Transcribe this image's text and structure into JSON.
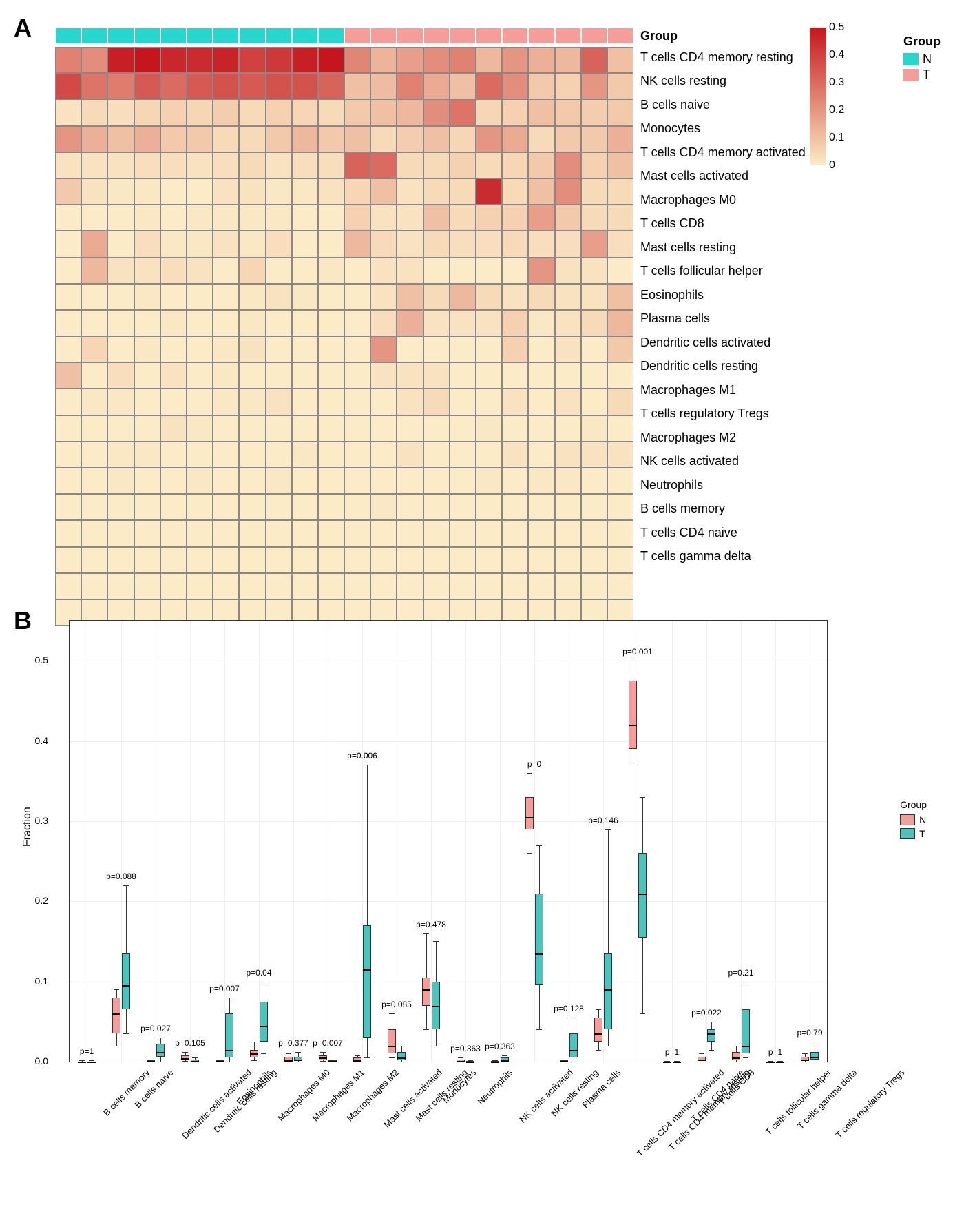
{
  "colors": {
    "group_N": "#27d6cc",
    "group_T": "#f59d99",
    "heatmap_low": "#fbebc6",
    "heatmap_high": "#c5161d",
    "grid_border": "#888888",
    "box_N": "#f59d99",
    "box_T": "#4cc4bd",
    "plot_border": "#333333",
    "grid_line": "#eeeeee"
  },
  "panelA": {
    "label": "A",
    "n_samples": 22,
    "n_N": 11,
    "n_T": 11,
    "group_label": "Group",
    "row_labels": [
      "T cells CD4 memory resting",
      "NK cells resting",
      "B cells naive",
      "Monocytes",
      "T cells CD4 memory activated",
      "Mast cells activated",
      "Macrophages M0",
      "T cells CD8",
      "Mast cells resting",
      "T cells follicular helper",
      "Eosinophils",
      "Plasma cells",
      "Dendritic cells activated",
      "Dendritic cells resting",
      "Macrophages M1",
      "T cells regulatory  Tregs",
      "Macrophages M2",
      "NK cells activated",
      "Neutrophils",
      "B cells memory",
      "T cells CD4 naive",
      "T cells gamma delta"
    ],
    "heatmap_values": [
      [
        0.25,
        0.22,
        0.48,
        0.5,
        0.46,
        0.45,
        0.47,
        0.4,
        0.42,
        0.48,
        0.5,
        0.24,
        0.13,
        0.18,
        0.22,
        0.25,
        0.12,
        0.2,
        0.14,
        0.12,
        0.32,
        0.1
      ],
      [
        0.38,
        0.28,
        0.26,
        0.34,
        0.3,
        0.34,
        0.36,
        0.34,
        0.36,
        0.36,
        0.32,
        0.1,
        0.11,
        0.25,
        0.15,
        0.1,
        0.3,
        0.22,
        0.08,
        0.06,
        0.2,
        0.08
      ],
      [
        0.02,
        0.04,
        0.03,
        0.05,
        0.06,
        0.05,
        0.07,
        0.04,
        0.06,
        0.05,
        0.04,
        0.08,
        0.1,
        0.12,
        0.22,
        0.28,
        0.05,
        0.06,
        0.1,
        0.08,
        0.07,
        0.08
      ],
      [
        0.2,
        0.14,
        0.1,
        0.14,
        0.08,
        0.08,
        0.04,
        0.04,
        0.08,
        0.12,
        0.08,
        0.1,
        0.04,
        0.07,
        0.1,
        0.05,
        0.2,
        0.15,
        0.04,
        0.08,
        0.08,
        0.14
      ],
      [
        0.02,
        0.02,
        0.02,
        0.03,
        0.03,
        0.02,
        0.03,
        0.04,
        0.02,
        0.03,
        0.03,
        0.32,
        0.3,
        0.04,
        0.04,
        0.06,
        0.04,
        0.05,
        0.08,
        0.22,
        0.06,
        0.1
      ],
      [
        0.08,
        0.02,
        0.01,
        0.01,
        0.0,
        0.0,
        0.02,
        0.02,
        0.01,
        0.01,
        0.02,
        0.05,
        0.1,
        0.02,
        0.04,
        0.04,
        0.45,
        0.04,
        0.1,
        0.22,
        0.04,
        0.04
      ],
      [
        0.0,
        0.0,
        0.0,
        0.01,
        0.0,
        0.01,
        0.01,
        0.01,
        0.01,
        0.0,
        0.0,
        0.06,
        0.02,
        0.02,
        0.1,
        0.04,
        0.06,
        0.06,
        0.18,
        0.08,
        0.04,
        0.04
      ],
      [
        0.0,
        0.15,
        0.0,
        0.03,
        0.01,
        0.01,
        0.02,
        0.01,
        0.03,
        0.0,
        0.0,
        0.12,
        0.04,
        0.02,
        0.04,
        0.03,
        0.03,
        0.04,
        0.03,
        0.03,
        0.18,
        0.03
      ],
      [
        0.0,
        0.12,
        0.02,
        0.02,
        0.03,
        0.02,
        0.0,
        0.05,
        0.0,
        0.0,
        0.01,
        0.0,
        0.02,
        0.02,
        0.0,
        0.0,
        0.0,
        0.0,
        0.2,
        0.02,
        0.02,
        0.0
      ],
      [
        0.0,
        0.0,
        0.0,
        0.01,
        0.0,
        0.0,
        0.0,
        0.01,
        0.02,
        0.01,
        0.0,
        0.0,
        0.02,
        0.1,
        0.04,
        0.12,
        0.04,
        0.02,
        0.04,
        0.02,
        0.02,
        0.1
      ],
      [
        0.0,
        0.0,
        0.0,
        0.0,
        0.01,
        0.0,
        0.0,
        0.01,
        0.0,
        0.0,
        0.0,
        0.0,
        0.03,
        0.14,
        0.02,
        0.02,
        0.02,
        0.06,
        0.01,
        0.02,
        0.04,
        0.12
      ],
      [
        0.0,
        0.05,
        0.0,
        0.01,
        0.0,
        0.0,
        0.01,
        0.02,
        0.0,
        0.0,
        0.0,
        0.0,
        0.2,
        0.0,
        0.0,
        0.0,
        0.0,
        0.06,
        0.0,
        0.02,
        0.0,
        0.08
      ],
      [
        0.1,
        0.0,
        0.03,
        0.0,
        0.02,
        0.0,
        0.01,
        0.0,
        0.0,
        0.0,
        0.0,
        0.0,
        0.02,
        0.02,
        0.02,
        0.0,
        0.0,
        0.0,
        0.0,
        0.0,
        0.0,
        0.0
      ],
      [
        0.0,
        0.01,
        0.01,
        0.0,
        0.0,
        0.0,
        0.01,
        0.01,
        0.02,
        0.0,
        0.0,
        0.0,
        0.0,
        0.02,
        0.04,
        0.0,
        0.0,
        0.02,
        0.0,
        0.02,
        0.0,
        0.04
      ],
      [
        0.0,
        0.0,
        0.0,
        0.0,
        0.02,
        0.01,
        0.0,
        0.0,
        0.0,
        0.0,
        0.0,
        0.0,
        0.0,
        0.0,
        0.0,
        0.0,
        0.01,
        0.0,
        0.0,
        0.0,
        0.01,
        0.0
      ],
      [
        0.0,
        0.0,
        0.01,
        0.01,
        0.0,
        0.0,
        0.0,
        0.0,
        0.0,
        0.01,
        0.0,
        0.0,
        0.0,
        0.02,
        0.0,
        0.0,
        0.0,
        0.02,
        0.0,
        0.02,
        0.02,
        0.02
      ],
      [
        0.0,
        0.0,
        0.01,
        0.0,
        0.0,
        0.01,
        0.0,
        0.0,
        0.01,
        0.0,
        0.0,
        0.0,
        0.0,
        0.0,
        0.0,
        0.0,
        0.01,
        0.0,
        0.01,
        0.01,
        0.0,
        0.0
      ],
      [
        0.0,
        0.0,
        0.0,
        0.0,
        0.0,
        0.0,
        0.0,
        0.0,
        0.0,
        0.0,
        0.0,
        0.0,
        0.01,
        0.0,
        0.0,
        0.0,
        0.0,
        0.0,
        0.0,
        0.0,
        0.0,
        0.0
      ],
      [
        0.0,
        0.0,
        0.0,
        0.0,
        0.0,
        0.0,
        0.0,
        0.0,
        0.0,
        0.0,
        0.0,
        0.0,
        0.0,
        0.0,
        0.0,
        0.0,
        0.0,
        0.0,
        0.0,
        0.0,
        0.0,
        0.0
      ],
      [
        0.0,
        0.0,
        0.0,
        0.0,
        0.0,
        0.0,
        0.0,
        0.0,
        0.0,
        0.0,
        0.0,
        0.0,
        0.0,
        0.0,
        0.0,
        0.0,
        0.0,
        0.0,
        0.0,
        0.0,
        0.0,
        0.0
      ],
      [
        0.0,
        0.0,
        0.0,
        0.0,
        0.0,
        0.0,
        0.0,
        0.0,
        0.0,
        0.0,
        0.0,
        0.0,
        0.0,
        0.0,
        0.0,
        0.0,
        0.0,
        0.0,
        0.0,
        0.0,
        0.0,
        0.0
      ],
      [
        0.0,
        0.0,
        0.0,
        0.0,
        0.0,
        0.0,
        0.0,
        0.0,
        0.0,
        0.0,
        0.0,
        0.0,
        0.0,
        0.0,
        0.0,
        0.0,
        0.0,
        0.0,
        0.0,
        0.0,
        0.0,
        0.0
      ]
    ],
    "colorbar": {
      "min": 0,
      "max": 0.5,
      "ticks": [
        0,
        0.1,
        0.2,
        0.3,
        0.4,
        0.5
      ]
    },
    "legend": {
      "title": "Group",
      "items": [
        {
          "label": "N",
          "color": "#27d6cc"
        },
        {
          "label": "T",
          "color": "#f59d99"
        }
      ]
    }
  },
  "panelB": {
    "label": "B",
    "y_axis_title": "Fraction",
    "y_ticks": [
      0.0,
      0.1,
      0.2,
      0.3,
      0.4,
      0.5
    ],
    "y_max": 0.55,
    "legend": {
      "title": "Group",
      "items": [
        {
          "label": "N",
          "color": "#f59d99"
        },
        {
          "label": "T",
          "color": "#4cc4bd"
        }
      ]
    },
    "categories": [
      {
        "name": "B cells memory",
        "p": "p=1",
        "N": {
          "q1": 0,
          "med": 0,
          "q3": 0,
          "lo": 0,
          "hi": 0.002
        },
        "T": {
          "q1": 0,
          "med": 0,
          "q3": 0,
          "lo": 0,
          "hi": 0.002
        }
      },
      {
        "name": "B cells naive",
        "p": "p=0.088",
        "N": {
          "q1": 0.035,
          "med": 0.06,
          "q3": 0.08,
          "lo": 0.02,
          "hi": 0.09
        },
        "T": {
          "q1": 0.065,
          "med": 0.095,
          "q3": 0.135,
          "lo": 0.035,
          "hi": 0.22
        }
      },
      {
        "name": "Dendritic cells activated",
        "p": "p=0.027",
        "N": {
          "q1": 0,
          "med": 0.001,
          "q3": 0.002,
          "lo": 0,
          "hi": 0.003
        },
        "T": {
          "q1": 0.006,
          "med": 0.012,
          "q3": 0.022,
          "lo": 0,
          "hi": 0.03
        }
      },
      {
        "name": "Dendritic cells resting",
        "p": "p=0.105",
        "N": {
          "q1": 0.002,
          "med": 0.004,
          "q3": 0.008,
          "lo": 0.001,
          "hi": 0.012
        },
        "T": {
          "q1": 0,
          "med": 0.001,
          "q3": 0.003,
          "lo": 0,
          "hi": 0.005
        }
      },
      {
        "name": "Eosinophils",
        "p": "p=0.007",
        "N": {
          "q1": 0,
          "med": 0.001,
          "q3": 0.002,
          "lo": 0,
          "hi": 0.003
        },
        "T": {
          "q1": 0.005,
          "med": 0.015,
          "q3": 0.06,
          "lo": 0,
          "hi": 0.08
        }
      },
      {
        "name": "Macrophages M0",
        "p": "p=0.04",
        "N": {
          "q1": 0.005,
          "med": 0.01,
          "q3": 0.015,
          "lo": 0.002,
          "hi": 0.025
        },
        "T": {
          "q1": 0.025,
          "med": 0.045,
          "q3": 0.075,
          "lo": 0.01,
          "hi": 0.1
        }
      },
      {
        "name": "Macrophages M1",
        "p": "p=0.377",
        "N": {
          "q1": 0.001,
          "med": 0.002,
          "q3": 0.006,
          "lo": 0,
          "hi": 0.01
        },
        "T": {
          "q1": 0.001,
          "med": 0.003,
          "q3": 0.006,
          "lo": 0,
          "hi": 0.012
        }
      },
      {
        "name": "Macrophages M2",
        "p": "p=0.007",
        "N": {
          "q1": 0.002,
          "med": 0.005,
          "q3": 0.008,
          "lo": 0.001,
          "hi": 0.012
        },
        "T": {
          "q1": 0,
          "med": 0.001,
          "q3": 0.002,
          "lo": 0,
          "hi": 0.003
        }
      },
      {
        "name": "Mast cells activated",
        "p": "p=0.006",
        "N": {
          "q1": 0,
          "med": 0.002,
          "q3": 0.005,
          "lo": 0,
          "hi": 0.008
        },
        "T": {
          "q1": 0.03,
          "med": 0.115,
          "q3": 0.17,
          "lo": 0.005,
          "hi": 0.37
        }
      },
      {
        "name": "Mast cells resting",
        "p": "p=0.085",
        "N": {
          "q1": 0.01,
          "med": 0.02,
          "q3": 0.04,
          "lo": 0.005,
          "hi": 0.06
        },
        "T": {
          "q1": 0.002,
          "med": 0.005,
          "q3": 0.012,
          "lo": 0,
          "hi": 0.02
        }
      },
      {
        "name": "Monocytes",
        "p": "p=0.478",
        "N": {
          "q1": 0.07,
          "med": 0.09,
          "q3": 0.105,
          "lo": 0.04,
          "hi": 0.16
        },
        "T": {
          "q1": 0.04,
          "med": 0.07,
          "q3": 0.1,
          "lo": 0.02,
          "hi": 0.15
        }
      },
      {
        "name": "Neutrophils",
        "p": "p=0.363",
        "N": {
          "q1": 0,
          "med": 0.001,
          "q3": 0.003,
          "lo": 0,
          "hi": 0.005
        },
        "T": {
          "q1": 0,
          "med": 0,
          "q3": 0.001,
          "lo": 0,
          "hi": 0.002
        }
      },
      {
        "name": "NK cells activated",
        "p": "p=0.363",
        "N": {
          "q1": 0,
          "med": 0,
          "q3": 0.001,
          "lo": 0,
          "hi": 0.002
        },
        "T": {
          "q1": 0.001,
          "med": 0.002,
          "q3": 0.005,
          "lo": 0,
          "hi": 0.008
        }
      },
      {
        "name": "NK cells resting",
        "p": "p=0",
        "N": {
          "q1": 0.29,
          "med": 0.305,
          "q3": 0.33,
          "lo": 0.26,
          "hi": 0.36
        },
        "T": {
          "q1": 0.095,
          "med": 0.135,
          "q3": 0.21,
          "lo": 0.04,
          "hi": 0.27
        }
      },
      {
        "name": "Plasma cells",
        "p": "p=0.128",
        "N": {
          "q1": 0,
          "med": 0.001,
          "q3": 0.002,
          "lo": 0,
          "hi": 0.003
        },
        "T": {
          "q1": 0.005,
          "med": 0.015,
          "q3": 0.035,
          "lo": 0,
          "hi": 0.055
        }
      },
      {
        "name": "T cells CD4 memory activated",
        "p": "p=0.146",
        "N": {
          "q1": 0.025,
          "med": 0.035,
          "q3": 0.055,
          "lo": 0.015,
          "hi": 0.065
        },
        "T": {
          "q1": 0.04,
          "med": 0.09,
          "q3": 0.135,
          "lo": 0.02,
          "hi": 0.29
        }
      },
      {
        "name": "T cells CD4 memory resting",
        "p": "p=0.001",
        "N": {
          "q1": 0.39,
          "med": 0.42,
          "q3": 0.475,
          "lo": 0.37,
          "hi": 0.5
        },
        "T": {
          "q1": 0.155,
          "med": 0.21,
          "q3": 0.26,
          "lo": 0.06,
          "hi": 0.33
        }
      },
      {
        "name": "T cells CD4 naive",
        "p": "p=1",
        "N": {
          "q1": 0,
          "med": 0,
          "q3": 0,
          "lo": 0,
          "hi": 0.001
        },
        "T": {
          "q1": 0,
          "med": 0,
          "q3": 0,
          "lo": 0,
          "hi": 0.001
        }
      },
      {
        "name": "T cells CD8",
        "p": "p=0.022",
        "N": {
          "q1": 0.001,
          "med": 0.003,
          "q3": 0.006,
          "lo": 0,
          "hi": 0.01
        },
        "T": {
          "q1": 0.025,
          "med": 0.035,
          "q3": 0.04,
          "lo": 0.015,
          "hi": 0.05
        }
      },
      {
        "name": "T cells follicular helper",
        "p": "p=0.21",
        "N": {
          "q1": 0.002,
          "med": 0.005,
          "q3": 0.012,
          "lo": 0,
          "hi": 0.02
        },
        "T": {
          "q1": 0.01,
          "med": 0.02,
          "q3": 0.065,
          "lo": 0.005,
          "hi": 0.1
        }
      },
      {
        "name": "T cells gamma delta",
        "p": "p=1",
        "N": {
          "q1": 0,
          "med": 0,
          "q3": 0,
          "lo": 0,
          "hi": 0.001
        },
        "T": {
          "q1": 0,
          "med": 0,
          "q3": 0,
          "lo": 0,
          "hi": 0.001
        }
      },
      {
        "name": "T cells regulatory Tregs",
        "p": "p=0.79",
        "N": {
          "q1": 0.001,
          "med": 0.003,
          "q3": 0.006,
          "lo": 0,
          "hi": 0.01
        },
        "T": {
          "q1": 0.003,
          "med": 0.006,
          "q3": 0.012,
          "lo": 0,
          "hi": 0.025
        }
      }
    ]
  }
}
